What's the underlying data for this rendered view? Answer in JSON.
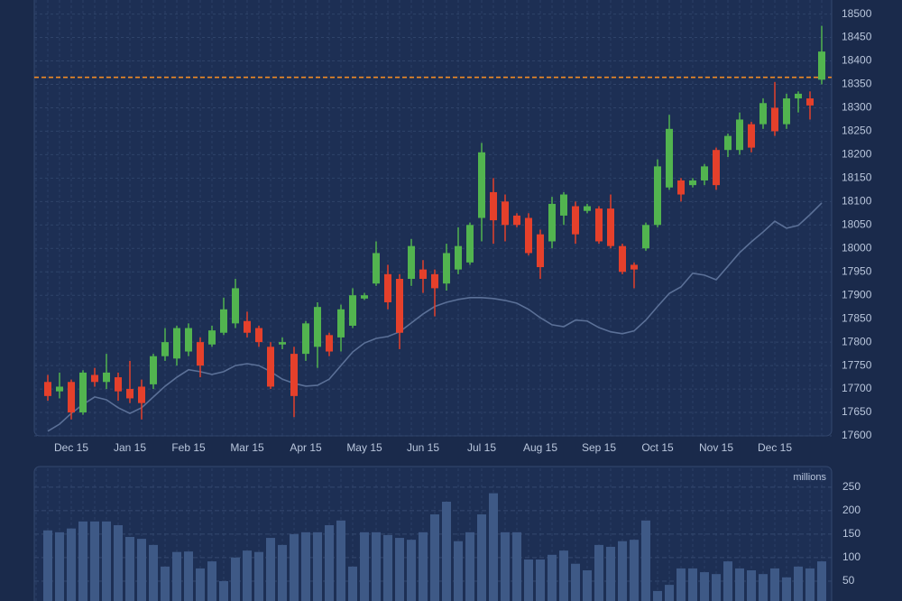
{
  "chart_data": [
    {
      "type": "candlestick",
      "categories": [
        null,
        null,
        "Dec 15",
        null,
        null,
        null,
        null,
        "Jan 15",
        null,
        null,
        null,
        null,
        "Feb 15",
        null,
        null,
        null,
        null,
        "Mar 15",
        null,
        null,
        null,
        null,
        "Apr 15",
        null,
        null,
        null,
        null,
        "May 15",
        null,
        null,
        null,
        null,
        "Jun 15",
        null,
        null,
        null,
        null,
        "Jul 15",
        null,
        null,
        null,
        null,
        "Aug 15",
        null,
        null,
        null,
        null,
        "Sep 15",
        null,
        null,
        null,
        null,
        "Oct 15",
        null,
        null,
        null,
        null,
        "Nov 15",
        null,
        null,
        null,
        null,
        "Dec 15",
        null,
        null,
        null,
        null
      ],
      "open": [
        17715,
        17695,
        17715,
        17650,
        17730,
        17715,
        17725,
        17700,
        17705,
        17710,
        17770,
        17765,
        17780,
        17800,
        17795,
        17820,
        17840,
        17845,
        17830,
        17790,
        17795,
        17775,
        17775,
        17790,
        17815,
        17810,
        17835,
        17893,
        17925,
        17945,
        17935,
        17935,
        17955,
        17945,
        17925,
        17955,
        17970,
        18065,
        18120,
        18100,
        18070,
        18065,
        18030,
        18015,
        18070,
        18090,
        18080,
        18085,
        18085,
        18005,
        17965,
        18000,
        18050,
        18130,
        18145,
        18135,
        18145,
        18210,
        18210,
        18210,
        18265,
        18265,
        18300,
        18265,
        18320,
        18320,
        18360
      ],
      "high": [
        17730,
        17735,
        17720,
        17740,
        17745,
        17775,
        17735,
        17760,
        17720,
        17775,
        17830,
        17835,
        17840,
        17810,
        17835,
        17895,
        17935,
        17865,
        17835,
        17800,
        17810,
        17790,
        17845,
        17885,
        17820,
        17880,
        17915,
        17905,
        18015,
        17965,
        17945,
        18020,
        17975,
        17955,
        18010,
        18045,
        18055,
        18225,
        18150,
        18115,
        18075,
        18075,
        18040,
        18110,
        18120,
        18100,
        18095,
        18090,
        18115,
        18010,
        17970,
        18055,
        18190,
        18285,
        18150,
        18150,
        18180,
        18215,
        18245,
        18290,
        18270,
        18320,
        18355,
        18330,
        18335,
        18335,
        18475
      ],
      "low": [
        17675,
        17680,
        17635,
        17645,
        17705,
        17700,
        17675,
        17670,
        17635,
        17700,
        17760,
        17750,
        17770,
        17725,
        17790,
        17815,
        17830,
        17810,
        17790,
        17700,
        17785,
        17640,
        17760,
        17745,
        17770,
        17780,
        17830,
        17890,
        17920,
        17870,
        17785,
        17920,
        17905,
        17855,
        17910,
        17945,
        17965,
        18015,
        18010,
        18015,
        18045,
        17985,
        17935,
        18000,
        18050,
        18010,
        18075,
        18010,
        18000,
        17945,
        17915,
        17995,
        18045,
        18125,
        18100,
        18130,
        18135,
        18125,
        18195,
        18200,
        18205,
        18255,
        18240,
        18255,
        18290,
        18275,
        18350
      ],
      "close": [
        17685,
        17705,
        17650,
        17735,
        17715,
        17735,
        17695,
        17680,
        17670,
        17770,
        17800,
        17830,
        17830,
        17750,
        17825,
        17870,
        17915,
        17820,
        17800,
        17705,
        17800,
        17685,
        17840,
        17875,
        17780,
        17870,
        17900,
        17900,
        17990,
        17885,
        17820,
        18005,
        17935,
        17915,
        17990,
        18005,
        18050,
        18205,
        18060,
        18050,
        18050,
        17990,
        17960,
        18095,
        18115,
        18030,
        18090,
        18015,
        18005,
        17950,
        17955,
        18050,
        18175,
        18255,
        18115,
        18145,
        18175,
        18135,
        18240,
        18275,
        18215,
        18310,
        18250,
        18320,
        18330,
        18305,
        18420
      ],
      "up_color": "#52b44f",
      "down_color": "#e5402b",
      "overlay": {
        "color": "#5b7097",
        "values": [
          17610,
          17625,
          17648,
          17667,
          17683,
          17677,
          17660,
          17648,
          17660,
          17683,
          17706,
          17725,
          17741,
          17737,
          17731,
          17737,
          17750,
          17754,
          17750,
          17737,
          17721,
          17712,
          17706,
          17708,
          17721,
          17750,
          17779,
          17798,
          17808,
          17812,
          17822,
          17841,
          17860,
          17876,
          17885,
          17891,
          17895,
          17895,
          17893,
          17889,
          17883,
          17870,
          17852,
          17837,
          17833,
          17847,
          17845,
          17831,
          17822,
          17818,
          17824,
          17847,
          17876,
          17904,
          17918,
          17947,
          17943,
          17933,
          17962,
          17991,
          18014,
          18035,
          18058,
          18043,
          18049,
          18072,
          18097
        ]
      },
      "reference_line": {
        "value": 18365,
        "color": "#f08a24"
      },
      "ylim": [
        17600,
        18530
      ],
      "yticks": [
        17600,
        17650,
        17700,
        17750,
        17800,
        17850,
        17900,
        17950,
        18000,
        18050,
        18100,
        18150,
        18200,
        18250,
        18300,
        18350,
        18400,
        18450,
        18500
      ],
      "grid": true
    },
    {
      "type": "bar",
      "y_label": "millions",
      "color": "#3e5986",
      "values": [
        158,
        154,
        162,
        177,
        177,
        177,
        169,
        144,
        140,
        127,
        81,
        112,
        113,
        77,
        92,
        50,
        100,
        115,
        112,
        142,
        127,
        150,
        154,
        154,
        169,
        179,
        81,
        154,
        154,
        148,
        142,
        138,
        154,
        192,
        219,
        135,
        154,
        192,
        237,
        154,
        154,
        96,
        96,
        106,
        115,
        87,
        73,
        127,
        123,
        135,
        138,
        179,
        29,
        42,
        77,
        77,
        69,
        65,
        92,
        77,
        73,
        65,
        77,
        58,
        81,
        77,
        92
      ],
      "ylim": [
        0,
        290
      ],
      "yticks": [
        50,
        100,
        150,
        200,
        250
      ],
      "grid": true
    }
  ]
}
